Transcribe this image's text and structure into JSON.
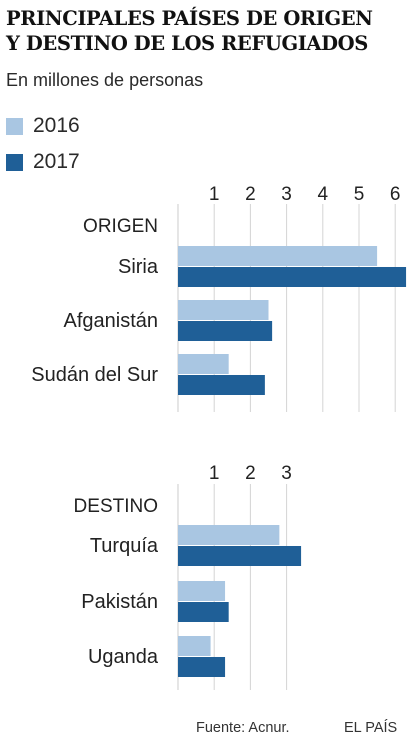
{
  "title_line1": "PRINCIPALES PAÍSES DE ORIGEN",
  "title_line2": "Y DESTINO DE LOS REFUGIADOS",
  "subtitle": "En millones de personas",
  "colors": {
    "2016": "#a9c6e2",
    "2017": "#1f5f97",
    "axis": "#cfcfcf",
    "text": "#222222"
  },
  "legend": [
    {
      "label": "2016",
      "color": "#a9c6e2"
    },
    {
      "label": "2017",
      "color": "#1f5f97"
    }
  ],
  "footer": {
    "source": "Fuente: Acnur.",
    "brand": "EL PAÍS"
  },
  "chart_data": [
    {
      "type": "bar",
      "orientation": "horizontal",
      "group_label": "ORIGEN",
      "categories": [
        "Siria",
        "Afganistán",
        "Sudán del Sur"
      ],
      "series": [
        {
          "name": "2016",
          "values": [
            5.5,
            2.5,
            1.4
          ]
        },
        {
          "name": "2017",
          "values": [
            6.3,
            2.6,
            2.4
          ]
        }
      ],
      "xticks": [
        "1",
        "2",
        "3",
        "4",
        "5",
        "6"
      ],
      "xlim": [
        0,
        6.3
      ]
    },
    {
      "type": "bar",
      "orientation": "horizontal",
      "group_label": "DESTINO",
      "categories": [
        "Turquía",
        "Pakistán",
        "Uganda"
      ],
      "series": [
        {
          "name": "2016",
          "values": [
            2.8,
            1.3,
            0.9
          ]
        },
        {
          "name": "2017",
          "values": [
            3.4,
            1.4,
            1.3
          ]
        }
      ],
      "xticks": [
        "1",
        "2",
        "3"
      ],
      "xlim": [
        0,
        6.3
      ]
    }
  ]
}
